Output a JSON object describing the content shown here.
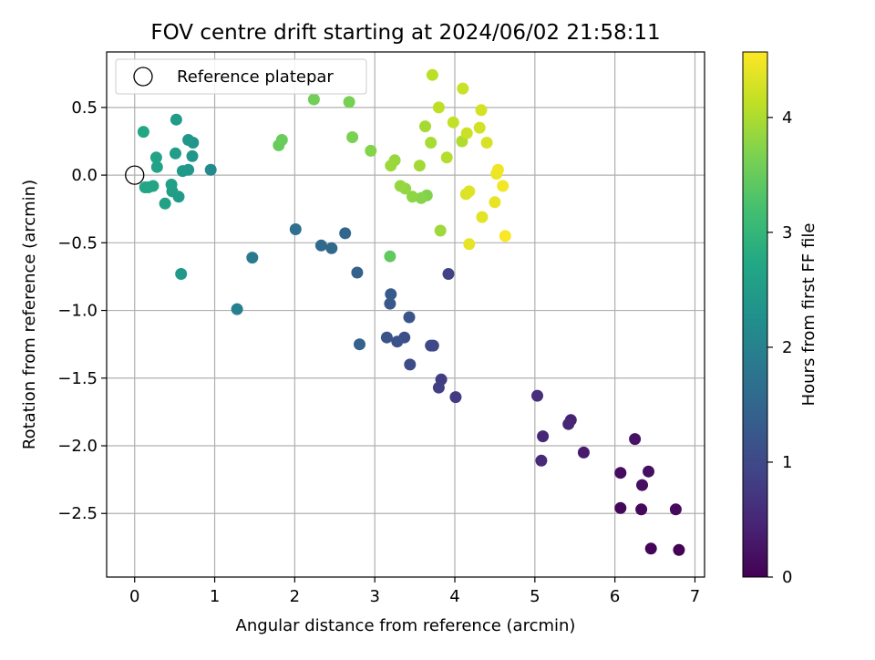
{
  "chart_data": {
    "type": "scatter",
    "title": "FOV centre drift starting at 2024/06/02 21:58:11",
    "xlabel": "Angular distance from reference (arcmin)",
    "ylabel": "Rotation from reference (arcmin)",
    "xlim": [
      -0.35,
      7.12
    ],
    "ylim": [
      -2.97,
      0.91
    ],
    "x_ticks": [
      0,
      1,
      2,
      3,
      4,
      5,
      6,
      7
    ],
    "x_tick_labels": [
      "0",
      "1",
      "2",
      "3",
      "4",
      "5",
      "6",
      "7"
    ],
    "y_ticks": [
      0.5,
      0.0,
      -0.5,
      -1.0,
      -1.5,
      -2.0,
      -2.5
    ],
    "y_tick_labels": [
      "0.5",
      "0.0",
      "−0.5",
      "−1.0",
      "−1.5",
      "−2.0",
      "−2.5"
    ],
    "grid": true,
    "legend": {
      "position": "top-left",
      "entries": [
        {
          "label": "Reference platepar",
          "marker": "open-circle",
          "color": "#000000"
        }
      ]
    },
    "reference_point": {
      "x": 0,
      "y": 0
    },
    "colorbar": {
      "label": "Hours from first FF file",
      "colormap": "viridis",
      "range": [
        0,
        4.57
      ],
      "ticks": [
        0,
        1,
        2,
        3,
        4
      ],
      "tick_labels": [
        "0",
        "1",
        "2",
        "3",
        "4"
      ]
    },
    "points": [
      {
        "x": 6.8,
        "y": -2.77,
        "c": 0.02
      },
      {
        "x": 6.45,
        "y": -2.76,
        "c": 0.05
      },
      {
        "x": 6.07,
        "y": -2.46,
        "c": 0.08
      },
      {
        "x": 6.33,
        "y": -2.47,
        "c": 0.1
      },
      {
        "x": 6.76,
        "y": -2.47,
        "c": 0.12
      },
      {
        "x": 6.07,
        "y": -2.2,
        "c": 0.15
      },
      {
        "x": 6.34,
        "y": -2.29,
        "c": 0.18
      },
      {
        "x": 6.42,
        "y": -2.19,
        "c": 0.2
      },
      {
        "x": 6.25,
        "y": -1.95,
        "c": 0.22
      },
      {
        "x": 5.61,
        "y": -2.05,
        "c": 0.35
      },
      {
        "x": 5.45,
        "y": -1.81,
        "c": 0.45
      },
      {
        "x": 5.42,
        "y": -1.84,
        "c": 0.48
      },
      {
        "x": 5.1,
        "y": -1.93,
        "c": 0.52
      },
      {
        "x": 5.08,
        "y": -2.11,
        "c": 0.55
      },
      {
        "x": 5.03,
        "y": -1.63,
        "c": 0.62
      },
      {
        "x": 4.01,
        "y": -1.64,
        "c": 0.78
      },
      {
        "x": 3.83,
        "y": -1.51,
        "c": 0.82
      },
      {
        "x": 3.8,
        "y": -1.57,
        "c": 0.85
      },
      {
        "x": 3.92,
        "y": -0.73,
        "c": 0.9
      },
      {
        "x": 3.73,
        "y": -1.26,
        "c": 0.95
      },
      {
        "x": 3.7,
        "y": -1.26,
        "c": 0.98
      },
      {
        "x": 3.44,
        "y": -1.4,
        "c": 1.05
      },
      {
        "x": 3.37,
        "y": -1.2,
        "c": 1.1
      },
      {
        "x": 3.28,
        "y": -1.23,
        "c": 1.15
      },
      {
        "x": 3.15,
        "y": -1.2,
        "c": 1.18
      },
      {
        "x": 3.43,
        "y": -1.05,
        "c": 1.2
      },
      {
        "x": 3.19,
        "y": -0.95,
        "c": 1.25
      },
      {
        "x": 3.2,
        "y": -0.88,
        "c": 1.28
      },
      {
        "x": 2.81,
        "y": -1.25,
        "c": 1.4
      },
      {
        "x": 2.78,
        "y": -0.72,
        "c": 1.42
      },
      {
        "x": 2.63,
        "y": -0.43,
        "c": 1.5
      },
      {
        "x": 2.46,
        "y": -0.54,
        "c": 1.55
      },
      {
        "x": 2.33,
        "y": -0.52,
        "c": 1.58
      },
      {
        "x": 2.01,
        "y": -0.4,
        "c": 1.68
      },
      {
        "x": 1.47,
        "y": -0.61,
        "c": 1.85
      },
      {
        "x": 1.28,
        "y": -0.99,
        "c": 1.95
      },
      {
        "x": 0.95,
        "y": 0.04,
        "c": 2.15
      },
      {
        "x": 0.73,
        "y": 0.24,
        "c": 2.35
      },
      {
        "x": 0.72,
        "y": 0.14,
        "c": 2.38
      },
      {
        "x": 0.67,
        "y": 0.26,
        "c": 2.4
      },
      {
        "x": 0.67,
        "y": 0.04,
        "c": 2.42
      },
      {
        "x": 0.6,
        "y": 0.03,
        "c": 2.44
      },
      {
        "x": 0.58,
        "y": -0.73,
        "c": 2.45
      },
      {
        "x": 0.55,
        "y": -0.16,
        "c": 2.48
      },
      {
        "x": 0.52,
        "y": 0.41,
        "c": 2.5
      },
      {
        "x": 0.51,
        "y": 0.16,
        "c": 2.52
      },
      {
        "x": 0.47,
        "y": -0.12,
        "c": 2.55
      },
      {
        "x": 0.46,
        "y": -0.07,
        "c": 2.57
      },
      {
        "x": 0.38,
        "y": -0.21,
        "c": 2.6
      },
      {
        "x": 0.28,
        "y": 0.06,
        "c": 2.62
      },
      {
        "x": 0.27,
        "y": 0.13,
        "c": 2.64
      },
      {
        "x": 0.23,
        "y": -0.08,
        "c": 2.66
      },
      {
        "x": 0.17,
        "y": -0.09,
        "c": 2.68
      },
      {
        "x": 0.13,
        "y": -0.09,
        "c": 2.7
      },
      {
        "x": 0.11,
        "y": 0.32,
        "c": 2.72
      },
      {
        "x": 3.19,
        "y": -0.6,
        "c": 3.45
      },
      {
        "x": 1.8,
        "y": 0.22,
        "c": 3.5
      },
      {
        "x": 1.84,
        "y": 0.26,
        "c": 3.52
      },
      {
        "x": 2.24,
        "y": 0.56,
        "c": 3.58
      },
      {
        "x": 2.68,
        "y": 0.54,
        "c": 3.62
      },
      {
        "x": 2.72,
        "y": 0.28,
        "c": 3.65
      },
      {
        "x": 2.95,
        "y": 0.18,
        "c": 3.72
      },
      {
        "x": 3.65,
        "y": -0.15,
        "c": 3.7
      },
      {
        "x": 3.58,
        "y": -0.17,
        "c": 3.74
      },
      {
        "x": 3.47,
        "y": -0.16,
        "c": 3.78
      },
      {
        "x": 3.38,
        "y": -0.1,
        "c": 3.82
      },
      {
        "x": 3.32,
        "y": -0.08,
        "c": 3.84
      },
      {
        "x": 3.25,
        "y": 0.11,
        "c": 3.86
      },
      {
        "x": 3.2,
        "y": 0.07,
        "c": 3.88
      },
      {
        "x": 3.82,
        "y": -0.41,
        "c": 3.9
      },
      {
        "x": 3.56,
        "y": 0.07,
        "c": 3.93
      },
      {
        "x": 3.63,
        "y": 0.36,
        "c": 3.95
      },
      {
        "x": 3.7,
        "y": 0.24,
        "c": 3.97
      },
      {
        "x": 4.09,
        "y": 0.25,
        "c": 4.02
      },
      {
        "x": 3.9,
        "y": 0.13,
        "c": 4.05
      },
      {
        "x": 3.72,
        "y": 0.74,
        "c": 4.1
      },
      {
        "x": 3.8,
        "y": 0.5,
        "c": 4.12
      },
      {
        "x": 3.98,
        "y": 0.39,
        "c": 4.15
      },
      {
        "x": 4.1,
        "y": 0.64,
        "c": 4.2
      },
      {
        "x": 4.15,
        "y": 0.31,
        "c": 4.22
      },
      {
        "x": 4.31,
        "y": 0.35,
        "c": 4.25
      },
      {
        "x": 4.33,
        "y": 0.48,
        "c": 4.28
      },
      {
        "x": 4.4,
        "y": 0.24,
        "c": 4.3
      },
      {
        "x": 4.14,
        "y": -0.14,
        "c": 4.33
      },
      {
        "x": 4.18,
        "y": -0.12,
        "c": 4.35
      },
      {
        "x": 4.34,
        "y": -0.31,
        "c": 4.38
      },
      {
        "x": 4.18,
        "y": -0.51,
        "c": 4.4
      },
      {
        "x": 4.5,
        "y": -0.2,
        "c": 4.42
      },
      {
        "x": 4.52,
        "y": 0.01,
        "c": 4.45
      },
      {
        "x": 4.54,
        "y": 0.04,
        "c": 4.48
      },
      {
        "x": 4.6,
        "y": -0.08,
        "c": 4.5
      },
      {
        "x": 4.63,
        "y": -0.45,
        "c": 4.55
      }
    ]
  }
}
